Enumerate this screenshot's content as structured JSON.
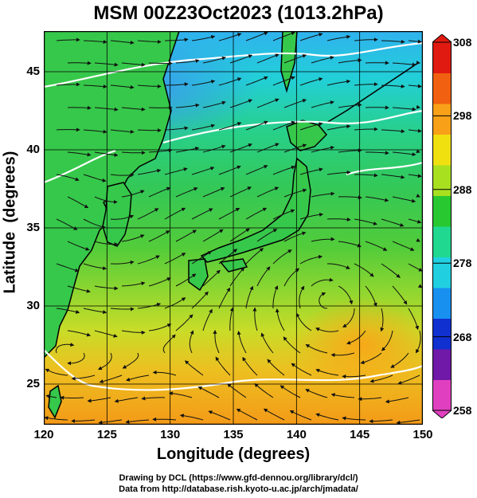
{
  "title": "MSM 00Z23Oct2023 (1013.2hPa)",
  "axes": {
    "xlabel": "Longitude (degrees)",
    "ylabel": "Latitude  (degrees)",
    "x_ticks": [
      "120",
      "125",
      "130",
      "135",
      "140",
      "145",
      "150"
    ],
    "y_ticks": [
      "25",
      "30",
      "35",
      "40",
      "45"
    ],
    "x_range": [
      120,
      150
    ],
    "y_range": [
      22.4,
      47.6
    ]
  },
  "colorbar": {
    "ticks": [
      "308",
      "298",
      "288",
      "278",
      "268",
      "258"
    ],
    "range": [
      258,
      308
    ],
    "colors": [
      "#e040c0",
      "#7018a8",
      "#1030d0",
      "#1890f0",
      "#20d0e0",
      "#20d890",
      "#28c830",
      "#a8e020",
      "#f0e010",
      "#f8a018",
      "#f06010",
      "#e01a10"
    ]
  },
  "credits": [
    "Drawing by DCL (https://www.gfd-dennou.org/library/dcl/)",
    "Data from http://database.rish.kyoto-u.ac.jp/arch/jmadata/"
  ],
  "colors": {
    "sea_cold": "#3aaef0",
    "sea_cool": "#22d8d0",
    "sea_mild": "#34cc64",
    "land": "#36c84a",
    "sea_warm": "#a8dc30",
    "sea_hot": "#f0b020",
    "sea_hotter": "#f69a18",
    "coast": "#000000",
    "streamline": "#111111",
    "contour": "#ffffff"
  }
}
